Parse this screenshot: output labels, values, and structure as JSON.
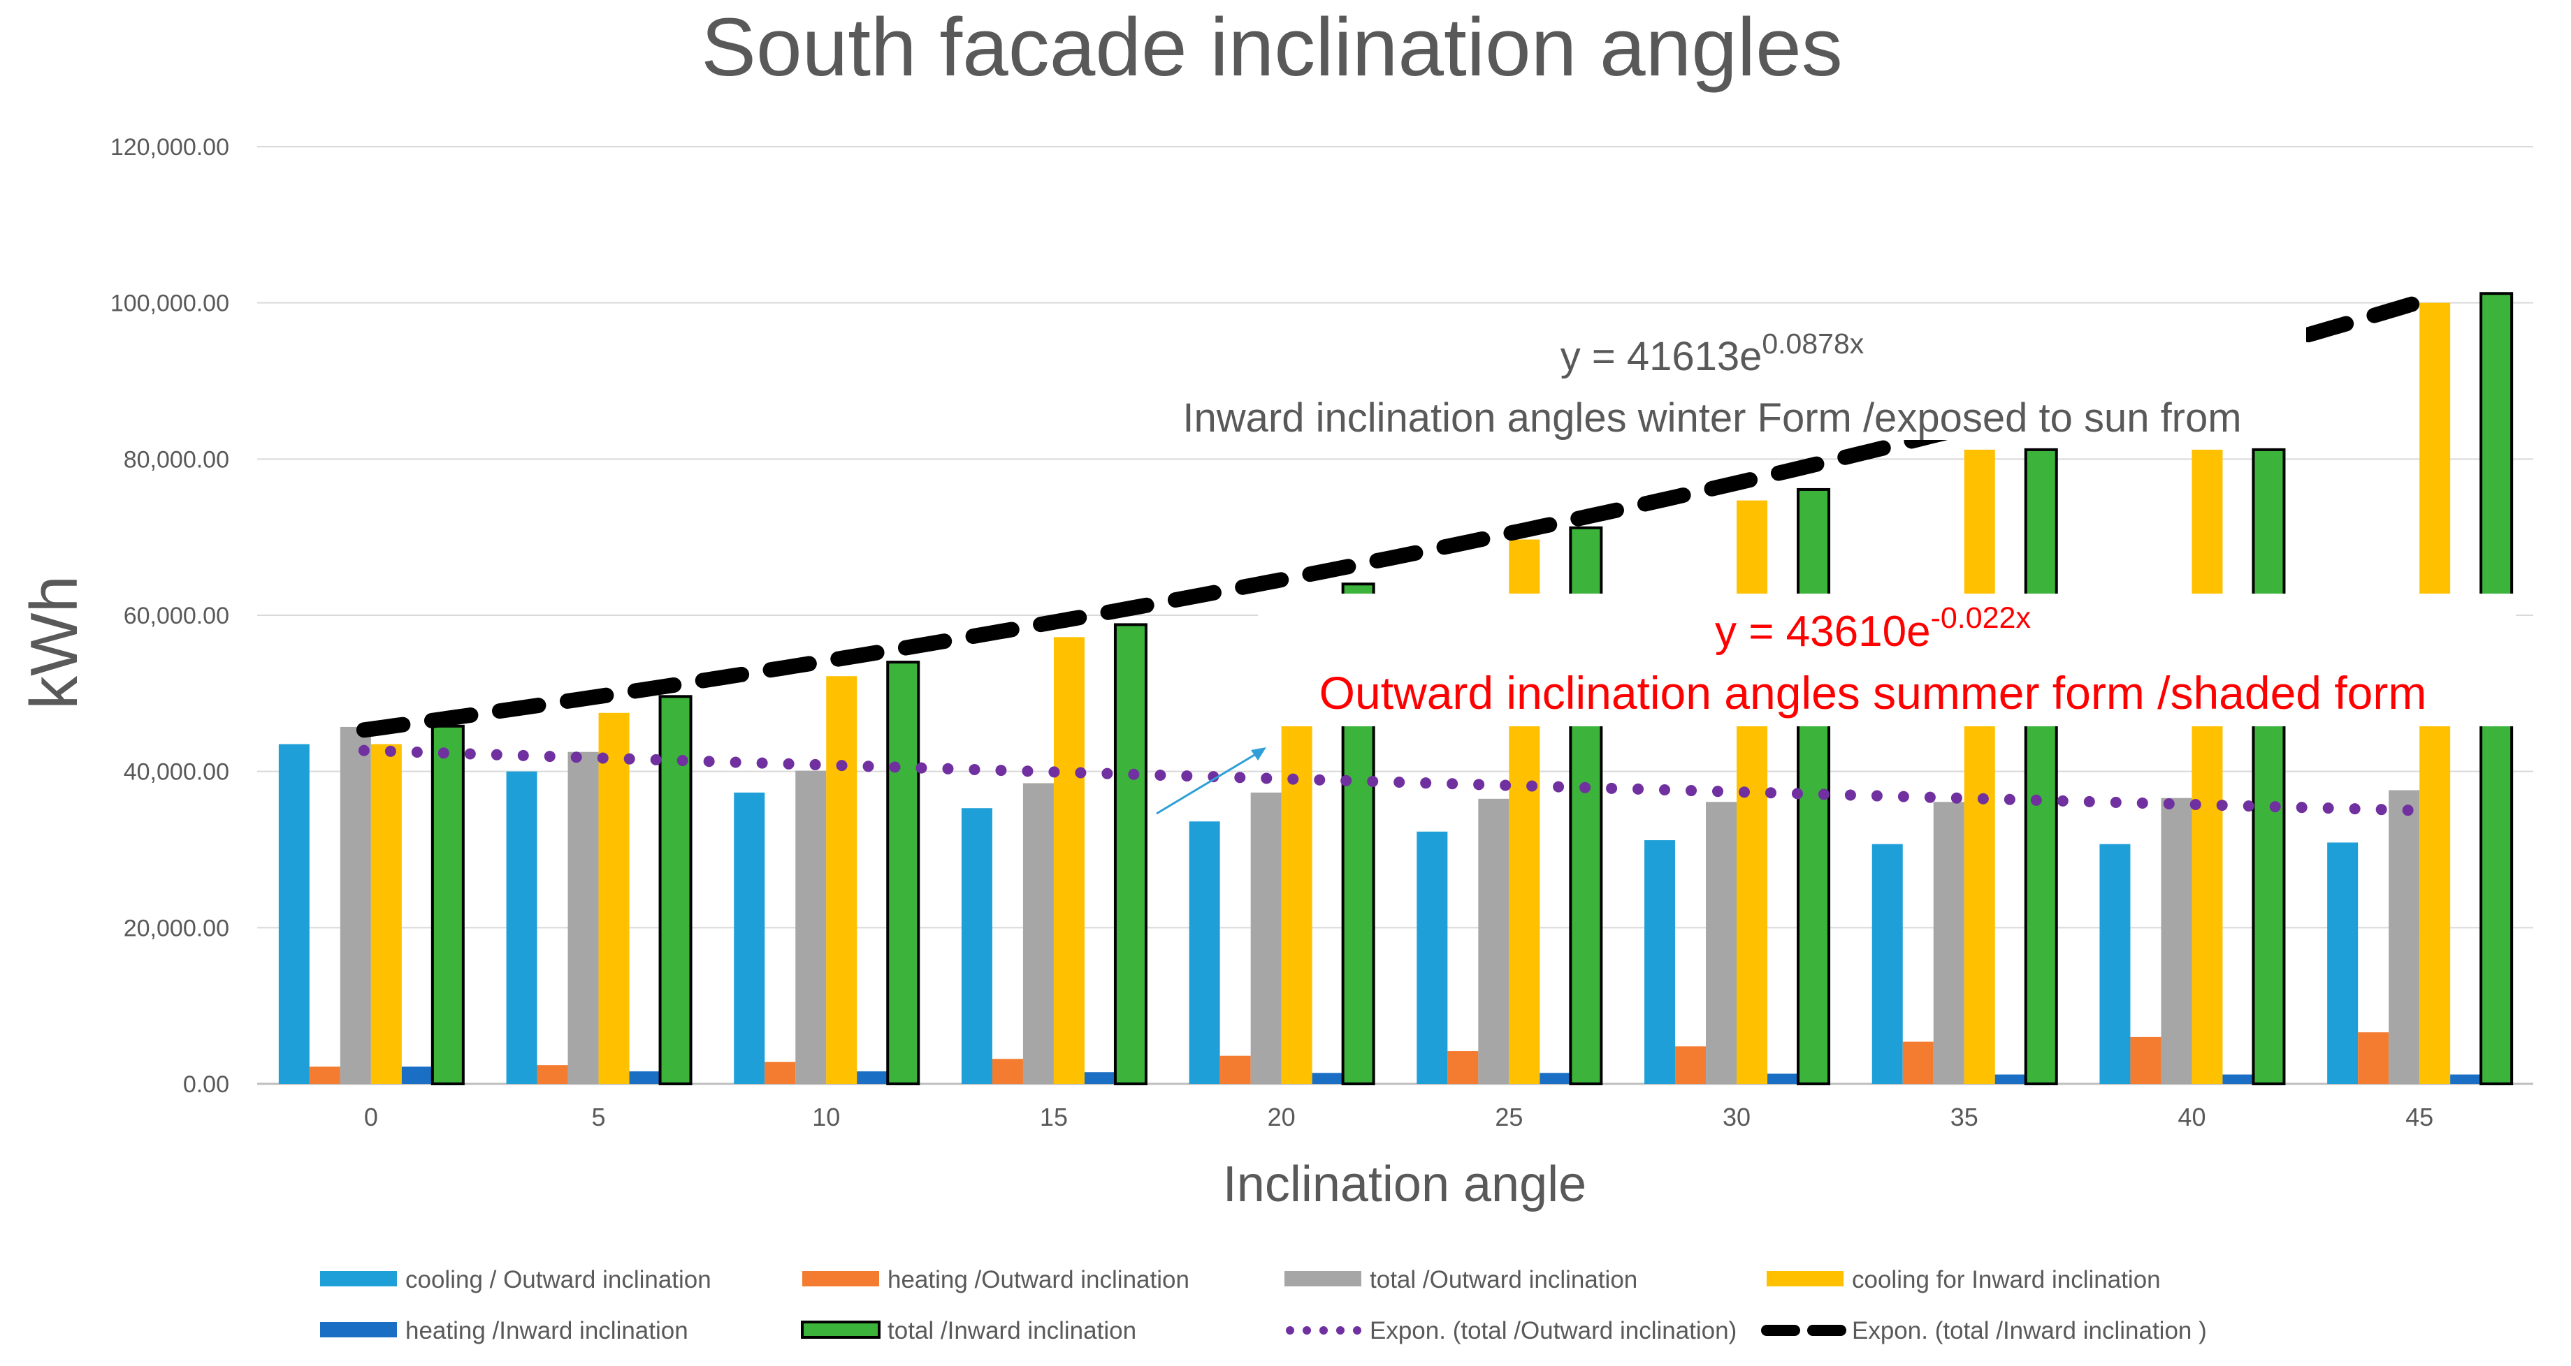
{
  "chart_data": {
    "type": "bar",
    "title": "South facade inclination angles",
    "xlabel": "Inclination angle",
    "ylabel": "kWh",
    "ylim": [
      0,
      120000
    ],
    "ytick_values": [
      0,
      20000,
      40000,
      60000,
      80000,
      100000,
      120000
    ],
    "ytick_labels": [
      "0.00",
      "20,000.00",
      "40,000.00",
      "60,000.00",
      "80,000.00",
      "100,000.00",
      "120,000.00"
    ],
    "categories": [
      "0",
      "5",
      "10",
      "15",
      "20",
      "25",
      "30",
      "35",
      "40",
      "45"
    ],
    "series": [
      {
        "name": "cooling / Outward inclination",
        "color": "#1f9fd8",
        "values": [
          43500,
          40000,
          37300,
          35300,
          33600,
          32300,
          31200,
          30700,
          30700,
          30900
        ]
      },
      {
        "name": "heating /Outward inclination",
        "color": "#f47c30",
        "values": [
          2200,
          2400,
          2800,
          3200,
          3600,
          4200,
          4800,
          5400,
          6000,
          6600
        ]
      },
      {
        "name": "total /Outward inclination",
        "color": "#a6a6a6",
        "values": [
          45700,
          42500,
          40100,
          38500,
          37300,
          36500,
          36100,
          36100,
          36600,
          37600
        ]
      },
      {
        "name": "cooling for Inward inclination",
        "color": "#ffc000",
        "values": [
          43500,
          47500,
          52200,
          57200,
          62600,
          69700,
          74700,
          81200,
          81200,
          100000
        ]
      },
      {
        "name": "heating /Inward inclination",
        "color": "#1a6fc4",
        "values": [
          2200,
          1600,
          1600,
          1500,
          1400,
          1400,
          1300,
          1200,
          1200,
          1200
        ]
      },
      {
        "name": "total /Inward inclination",
        "color": "#3cb43c",
        "values": [
          45800,
          49600,
          54000,
          58800,
          64000,
          71200,
          76100,
          81200,
          81200,
          101200
        ]
      }
    ],
    "trendlines": [
      {
        "name": "Expon. (total /Outward inclination)",
        "color": "#7030a0",
        "style": "dotted",
        "a": 43610,
        "b": -0.022
      },
      {
        "name": "Expon. (total /Inward inclination )",
        "color": "#000000",
        "style": "dashed",
        "a": 41613,
        "b": 0.0878
      }
    ],
    "annotations": [
      {
        "id": "inward-eq",
        "base": "y = 41613e",
        "exp": "0.0878x",
        "color": "#595959"
      },
      {
        "id": "inward-desc",
        "text": "Inward inclination angles winter Form /exposed to sun from",
        "color": "#595959"
      },
      {
        "id": "outward-eq",
        "base": "y = 43610e",
        "exp": "-0.022x",
        "color": "#ff0000"
      },
      {
        "id": "outward-desc",
        "text": "Outward inclination angles summer form /shaded form",
        "color": "#ff0000"
      }
    ],
    "legend_position": "bottom",
    "grid": true
  }
}
